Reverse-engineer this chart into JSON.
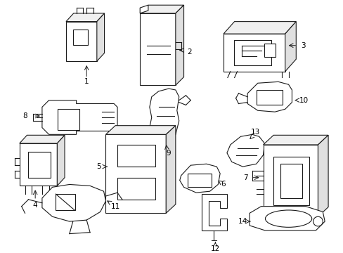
{
  "background_color": "#ffffff",
  "line_color": "#1a1a1a",
  "label_color": "#000000",
  "fig_width": 4.89,
  "fig_height": 3.6,
  "dpi": 100,
  "lw": 0.8,
  "label_fs": 7.5
}
